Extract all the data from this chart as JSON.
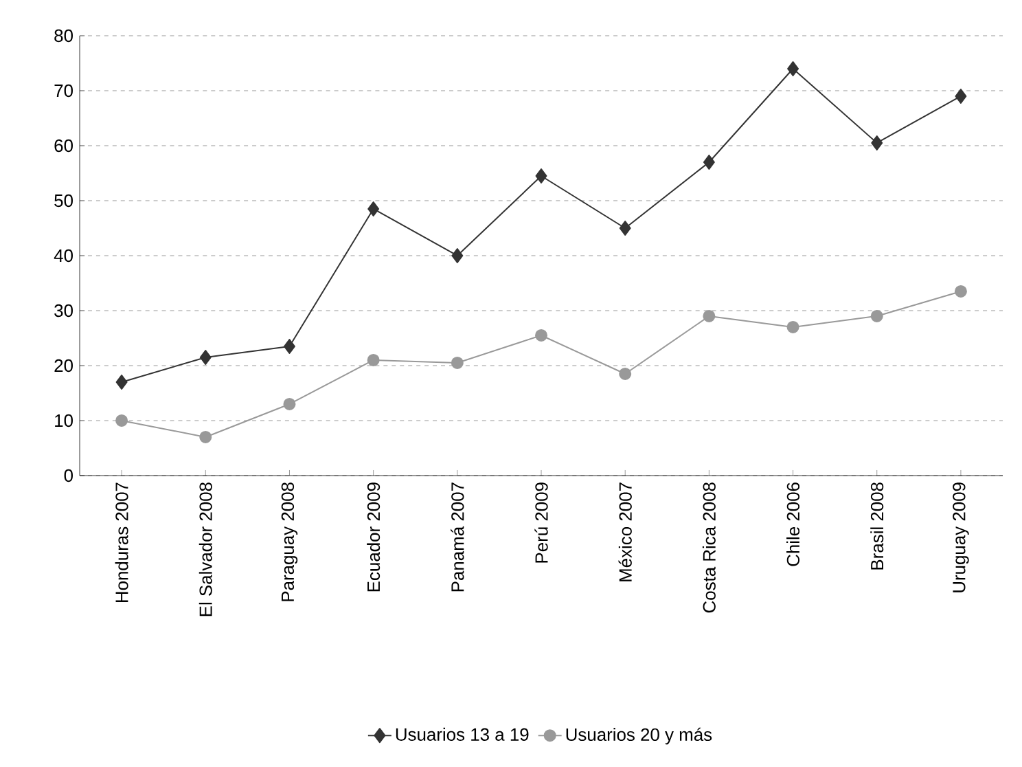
{
  "chart_data": {
    "type": "line",
    "categories": [
      "Honduras 2007",
      "El Salvador 2008",
      "Paraguay 2008",
      "Ecuador 2009",
      "Panamá 2007",
      "Perú 2009",
      "México 2007",
      "Costa Rica 2008",
      "Chile 2006",
      "Brasil 2008",
      "Uruguay 2009"
    ],
    "series": [
      {
        "name": "Usuarios 13 a 19",
        "color": "#333333",
        "marker": "diamond",
        "values": [
          17,
          21.5,
          23.5,
          48.5,
          40,
          54.5,
          45,
          57,
          74,
          60.5,
          69
        ]
      },
      {
        "name": "Usuarios 20 y más",
        "color": "#999999",
        "marker": "circle",
        "values": [
          10,
          7,
          13,
          21,
          20.5,
          25.5,
          18.5,
          29,
          27,
          29,
          33.5
        ]
      }
    ],
    "ylim": [
      0,
      80
    ],
    "yticks": [
      0,
      10,
      20,
      30,
      40,
      50,
      60,
      70,
      80
    ],
    "grid": "y",
    "legend": "bottom",
    "line_style": "solid"
  }
}
